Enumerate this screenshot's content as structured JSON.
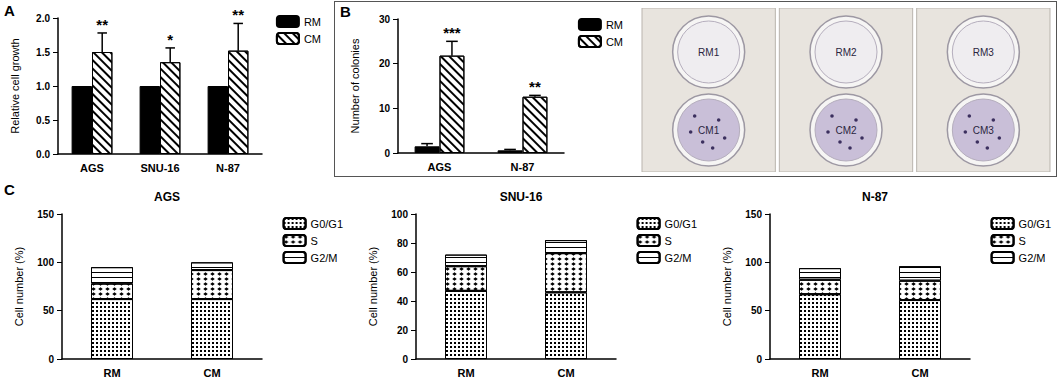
{
  "chart_data": [
    {
      "panel": "A",
      "type": "bar",
      "categories": [
        "AGS",
        "SNU-16",
        "N-87"
      ],
      "y_label": "Relative cell growth",
      "ylim": [
        0,
        2
      ],
      "yticks": [
        {
          "value": 0,
          "label": "0.0"
        },
        {
          "value": 0.5,
          "label": "0.5"
        },
        {
          "value": 1,
          "label": "1.0"
        },
        {
          "value": 1.5,
          "label": "1.5"
        },
        {
          "value": 2,
          "label": "2.0"
        }
      ],
      "legend": "right",
      "series": [
        {
          "name": "RM",
          "color": "#000000",
          "marker": "solid",
          "values": [
            1,
            1,
            1
          ]
        },
        {
          "name": "CM",
          "color": "#ffffff",
          "marker": "hatch",
          "values": [
            1.5,
            1.35,
            1.52
          ],
          "error": [
            0.28,
            0.21,
            0.4
          ],
          "annotations": [
            "**",
            "*",
            "**"
          ]
        }
      ]
    },
    {
      "panel": "B",
      "type": "bar",
      "categories": [
        "AGS",
        "N-87"
      ],
      "y_label": "Number of colonies",
      "ylim": [
        0,
        30
      ],
      "yticks": [
        0,
        10,
        20,
        30
      ],
      "legend": "right",
      "series": [
        {
          "name": "RM",
          "color": "#000000",
          "marker": "solid",
          "values": [
            1.5,
            0.6
          ],
          "error": [
            0.6,
            0.2
          ]
        },
        {
          "name": "CM",
          "color": "#ffffff",
          "marker": "hatch",
          "values": [
            21.8,
            12.6
          ],
          "error": [
            3.2,
            0.3
          ],
          "annotations": [
            "***",
            "**"
          ]
        }
      ],
      "plates": {
        "top": [
          "RM1",
          "RM2",
          "RM3"
        ],
        "bottom": [
          "CM1",
          "CM2",
          "CM3"
        ]
      }
    },
    {
      "panel": "C",
      "type": "bar",
      "title": "AGS",
      "categories": [
        "RM",
        "CM"
      ],
      "stacked": true,
      "y_label": "Cell number (%)",
      "ylim": [
        0,
        150
      ],
      "yticks": [
        0,
        50,
        100,
        150
      ],
      "legend": "right",
      "series": [
        {
          "name": "G0/G1",
          "color": "#ffffff",
          "marker": "checker",
          "values": [
            62,
            62
          ]
        },
        {
          "name": "S",
          "color": "#ffffff",
          "marker": "crosshatch",
          "values": [
            16,
            30
          ]
        },
        {
          "name": "G2/M",
          "color": "#ffffff",
          "marker": "lines",
          "values": [
            17,
            8
          ]
        }
      ]
    },
    {
      "type": "bar",
      "title": "SNU-16",
      "categories": [
        "RM",
        "CM"
      ],
      "stacked": true,
      "y_label": "Cell number (%)",
      "ylim": [
        0,
        100
      ],
      "yticks": [
        0,
        20,
        40,
        60,
        80,
        100
      ],
      "legend": "right",
      "series": [
        {
          "name": "G0/G1",
          "color": "#ffffff",
          "marker": "checker",
          "values": [
            47,
            46
          ]
        },
        {
          "name": "S",
          "color": "#ffffff",
          "marker": "crosshatch",
          "values": [
            17,
            27
          ]
        },
        {
          "name": "G2/M",
          "color": "#ffffff",
          "marker": "lines",
          "values": [
            8,
            9
          ]
        }
      ]
    },
    {
      "type": "bar",
      "title": "N-87",
      "categories": [
        "RM",
        "CM"
      ],
      "stacked": true,
      "y_label": "Cell number (%)",
      "ylim": [
        0,
        150
      ],
      "yticks": [
        0,
        50,
        100,
        150
      ],
      "legend": "right",
      "series": [
        {
          "name": "G0/G1",
          "color": "#ffffff",
          "marker": "checker",
          "values": [
            67,
            61
          ]
        },
        {
          "name": "S",
          "color": "#ffffff",
          "marker": "crosshatch",
          "values": [
            15,
            20
          ]
        },
        {
          "name": "G2/M",
          "color": "#ffffff",
          "marker": "lines",
          "values": [
            12,
            15
          ]
        }
      ]
    }
  ]
}
